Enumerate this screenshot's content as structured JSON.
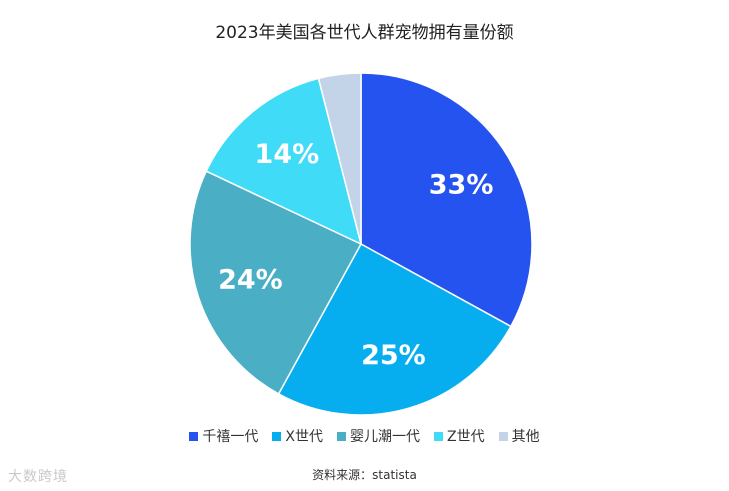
{
  "chart_data": {
    "type": "pie",
    "title": "2023年美国各世代人群宠物拥有量份额",
    "categories": [
      "千禧一代",
      "X世代",
      "婴儿潮一代",
      "Z世代",
      "其他"
    ],
    "values": [
      33,
      25,
      24,
      14,
      4
    ],
    "labels": [
      "33%",
      "25%",
      "24%",
      "14%",
      ""
    ],
    "colors": [
      "#2453ef",
      "#06aef0",
      "#4aaec5",
      "#40dbf7",
      "#c3d4e9"
    ],
    "legend": "bottom"
  },
  "source": "资料来源：statista",
  "watermark": "大数跨境"
}
